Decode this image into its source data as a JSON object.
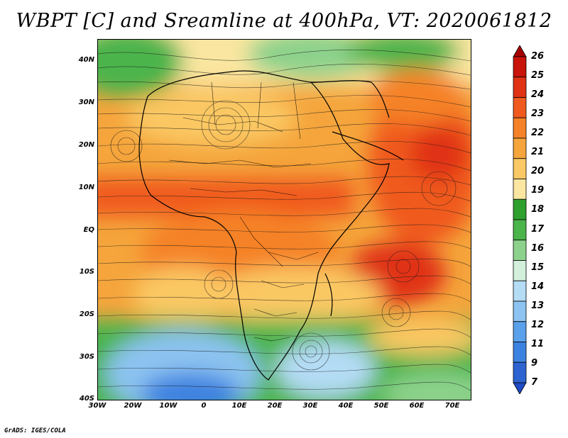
{
  "title": "WBPT [C] and Sreamline at 400hPa, VT: 2020061812",
  "credit": "GrADS: IGES/COLA",
  "map": {
    "lat_labels": [
      "40N",
      "30N",
      "20N",
      "10N",
      "EQ",
      "10S",
      "20S",
      "30S",
      "40S"
    ],
    "lon_labels": [
      "30W",
      "20W",
      "10W",
      "0",
      "10E",
      "20E",
      "30E",
      "40E",
      "50E",
      "60E",
      "70E"
    ],
    "lat_range": [
      -40,
      45
    ],
    "lon_range": [
      -30,
      75
    ]
  },
  "colorbar": {
    "levels": [
      "26",
      "25",
      "24",
      "23",
      "22",
      "21",
      "20",
      "19",
      "18",
      "17",
      "16",
      "15",
      "14",
      "13",
      "12",
      "11",
      "9",
      "7"
    ],
    "colors": [
      "#a50000",
      "#c8140a",
      "#e03214",
      "#f05a1e",
      "#f58228",
      "#f5a53c",
      "#fac864",
      "#fae6a0",
      "#2ea02e",
      "#4bb44b",
      "#8cd28c",
      "#d2f0dc",
      "#b4dcf5",
      "#8cc3f0",
      "#5aa0eb",
      "#3c82e1",
      "#2d64d2",
      "#1e4bc3"
    ]
  }
}
